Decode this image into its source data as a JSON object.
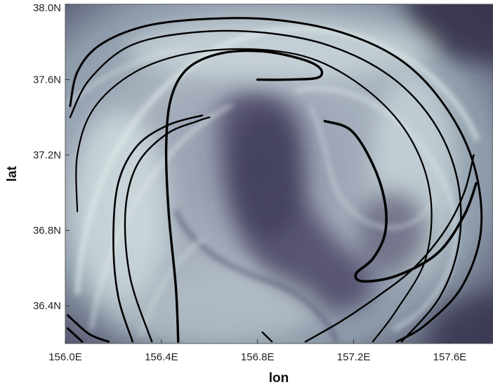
{
  "chart_data": {
    "type": "heatmap",
    "title": "",
    "xlabel": "lon",
    "ylabel": "lat",
    "xlim": [
      156.0,
      157.78
    ],
    "ylim": [
      36.2,
      38.0
    ],
    "x_ticks": [
      {
        "value": 156.0,
        "label": "156.0E"
      },
      {
        "value": 156.4,
        "label": "156.4E"
      },
      {
        "value": 156.8,
        "label": "156.8E"
      },
      {
        "value": 157.2,
        "label": "157.2E"
      },
      {
        "value": 157.6,
        "label": "157.6E"
      }
    ],
    "y_ticks": [
      {
        "value": 36.4,
        "label": "36.4N"
      },
      {
        "value": 36.8,
        "label": "36.8N"
      },
      {
        "value": 37.2,
        "label": "37.2N"
      },
      {
        "value": 37.6,
        "label": "37.6N"
      },
      {
        "value": 38.0,
        "label": "38.0N"
      }
    ],
    "grid": false,
    "colormap": [
      "#2e2a45",
      "#6a6685",
      "#9fa9b6",
      "#d2e0e2"
    ],
    "curve_color": "#000000",
    "curves": [
      {
        "lw": 3.4,
        "points": [
          [
            156.47,
            36.21
          ],
          [
            156.46,
            36.5
          ],
          [
            156.43,
            36.9
          ],
          [
            156.42,
            37.25
          ],
          [
            156.44,
            37.5
          ],
          [
            156.51,
            37.66
          ],
          [
            156.65,
            37.74
          ],
          [
            156.82,
            37.75
          ],
          [
            156.98,
            37.71
          ],
          [
            157.06,
            37.66
          ],
          [
            157.05,
            37.61
          ],
          [
            156.92,
            37.6
          ],
          [
            156.8,
            37.6
          ]
        ]
      },
      {
        "lw": 3.0,
        "points": [
          [
            156.01,
            36.35
          ],
          [
            156.1,
            36.25
          ],
          [
            156.18,
            36.21
          ]
        ]
      },
      {
        "lw": 3.0,
        "points": [
          [
            156.01,
            36.28
          ],
          [
            156.07,
            36.21
          ]
        ]
      },
      {
        "lw": 2.6,
        "points": [
          [
            156.28,
            36.21
          ],
          [
            156.22,
            36.45
          ],
          [
            156.2,
            36.75
          ],
          [
            156.22,
            37.05
          ],
          [
            156.3,
            37.25
          ],
          [
            156.43,
            37.36
          ],
          [
            156.57,
            37.41
          ]
        ]
      },
      {
        "lw": 2.4,
        "points": [
          [
            156.36,
            36.21
          ],
          [
            156.27,
            36.55
          ],
          [
            156.25,
            36.9
          ],
          [
            156.3,
            37.15
          ],
          [
            156.42,
            37.31
          ],
          [
            156.55,
            37.38
          ],
          [
            156.6,
            37.4
          ]
        ]
      },
      {
        "lw": 3.0,
        "points": [
          [
            156.02,
            37.46
          ],
          [
            156.05,
            37.64
          ],
          [
            156.14,
            37.78
          ],
          [
            156.32,
            37.88
          ],
          [
            156.56,
            37.92
          ],
          [
            156.85,
            37.92
          ],
          [
            157.15,
            37.85
          ],
          [
            157.4,
            37.7
          ],
          [
            157.58,
            37.46
          ],
          [
            157.7,
            37.15
          ],
          [
            157.73,
            36.8
          ],
          [
            157.65,
            36.5
          ],
          [
            157.5,
            36.3
          ],
          [
            157.38,
            36.21
          ]
        ]
      },
      {
        "lw": 2.4,
        "points": [
          [
            156.02,
            37.4
          ],
          [
            156.1,
            37.6
          ],
          [
            156.27,
            37.78
          ],
          [
            156.53,
            37.85
          ],
          [
            156.82,
            37.85
          ],
          [
            157.1,
            37.78
          ],
          [
            157.35,
            37.62
          ],
          [
            157.53,
            37.38
          ],
          [
            157.63,
            37.08
          ],
          [
            157.64,
            36.75
          ],
          [
            157.56,
            36.45
          ],
          [
            157.4,
            36.21
          ]
        ]
      },
      {
        "lw": 2.2,
        "points": [
          [
            156.05,
            36.9
          ],
          [
            156.05,
            37.2
          ],
          [
            156.12,
            37.45
          ],
          [
            156.29,
            37.64
          ],
          [
            156.52,
            37.74
          ],
          [
            156.8,
            37.76
          ],
          [
            157.05,
            37.7
          ],
          [
            157.28,
            37.52
          ],
          [
            157.44,
            37.28
          ],
          [
            157.52,
            36.98
          ],
          [
            157.5,
            36.65
          ],
          [
            157.38,
            36.38
          ],
          [
            157.28,
            36.21
          ]
        ]
      },
      {
        "lw": 3.6,
        "points": [
          [
            157.08,
            37.38
          ],
          [
            157.19,
            37.33
          ],
          [
            157.28,
            37.15
          ],
          [
            157.33,
            36.95
          ],
          [
            157.33,
            36.78
          ],
          [
            157.28,
            36.65
          ],
          [
            157.21,
            36.57
          ],
          [
            157.24,
            36.53
          ],
          [
            157.38,
            36.56
          ],
          [
            157.55,
            36.68
          ],
          [
            157.66,
            36.88
          ],
          [
            157.71,
            37.05
          ]
        ]
      },
      {
        "lw": 2.4,
        "points": [
          [
            157.0,
            36.21
          ],
          [
            157.15,
            36.32
          ],
          [
            157.3,
            36.45
          ],
          [
            157.45,
            36.6
          ],
          [
            157.58,
            36.8
          ],
          [
            157.66,
            37.0
          ],
          [
            157.7,
            37.2
          ]
        ]
      },
      {
        "lw": 2.4,
        "points": [
          [
            156.86,
            36.21
          ],
          [
            156.82,
            36.26
          ]
        ]
      }
    ]
  }
}
